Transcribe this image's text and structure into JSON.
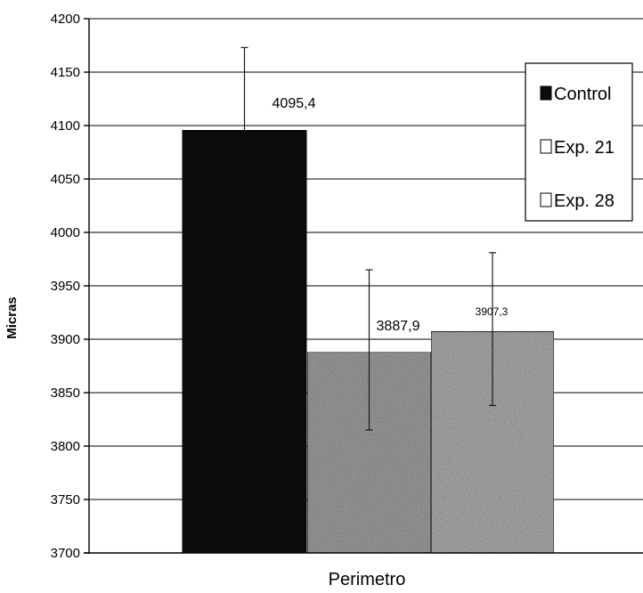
{
  "chart_data": {
    "type": "bar",
    "title": "",
    "xlabel": "Perimetro",
    "ylabel": "Micras",
    "ylim": [
      3700,
      4200
    ],
    "yticks": [
      3700,
      3750,
      3800,
      3850,
      3900,
      3950,
      4000,
      4050,
      4100,
      4150,
      4200
    ],
    "categories": [
      "Perimetro"
    ],
    "grid": true,
    "legend_position": "top-right",
    "series": [
      {
        "name": "Control",
        "values": [
          4095.4
        ],
        "error_low": [
          4095.4
        ],
        "error_high": [
          4173
        ],
        "data_label": "4095,4",
        "color": "#0b0b0b",
        "legend_label": "Control"
      },
      {
        "name": "Exp. 21",
        "values": [
          3887.9
        ],
        "error_low": [
          3815
        ],
        "error_high": [
          3965
        ],
        "data_label": "3887,9",
        "color": "#9a9a9a",
        "legend_label": "Exp. 21"
      },
      {
        "name": "Exp. 28",
        "values": [
          3907.3
        ],
        "error_low": [
          3838
        ],
        "error_high": [
          3981
        ],
        "data_label": "3907,3",
        "color": "#a8a8a8",
        "legend_label": "Exp. 28"
      }
    ]
  }
}
